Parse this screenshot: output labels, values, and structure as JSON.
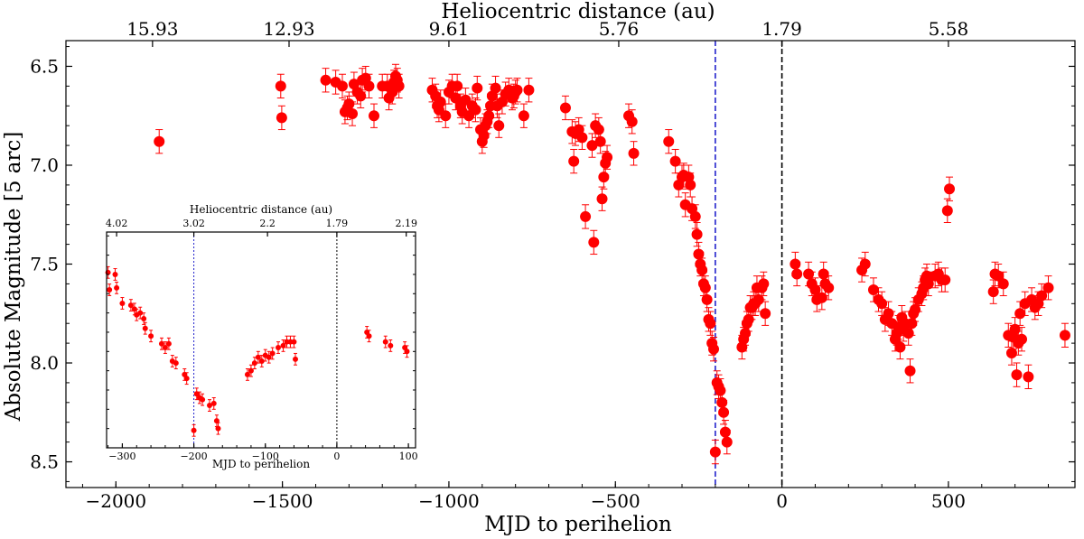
{
  "chart_data": [
    {
      "id": "main",
      "type": "scatter",
      "xlabel": "MJD to perihelion",
      "ylabel": "Absolute Magnitude [5 arc]",
      "top_axis_label": "Heliocentric distance (au)",
      "xlim": [
        -2150,
        880
      ],
      "ylim": [
        8.63,
        6.37
      ],
      "y_inverted": true,
      "x_ticks": [
        -2000,
        -1500,
        -1000,
        -500,
        0,
        500
      ],
      "x_tick_labels": [
        "−2000",
        "−1500",
        "−1000",
        "−500",
        "0",
        "500"
      ],
      "y_ticks": [
        6.5,
        7.0,
        7.5,
        8.0,
        8.5
      ],
      "y_tick_labels": [
        "6.5",
        "7.0",
        "7.5",
        "8.0",
        "8.5"
      ],
      "top_ticks": [
        {
          "x": -1890,
          "label": "15.93"
        },
        {
          "x": -1480,
          "label": "12.93"
        },
        {
          "x": -1000,
          "label": "9.61"
        },
        {
          "x": -490,
          "label": "5.76"
        },
        {
          "x": 0,
          "label": "1.79"
        },
        {
          "x": 500,
          "label": "5.58"
        }
      ],
      "vlines": [
        {
          "x": -200,
          "color": "#2222cc",
          "style": "dashed"
        },
        {
          "x": 0,
          "color": "#000000",
          "style": "dashed"
        }
      ],
      "marker_color": "#ff0000",
      "points": [
        [
          -1870,
          6.88
        ],
        [
          -1505,
          6.6
        ],
        [
          -1502,
          6.76
        ],
        [
          -1370,
          6.57
        ],
        [
          -1340,
          6.58
        ],
        [
          -1320,
          6.6
        ],
        [
          -1312,
          6.73
        ],
        [
          -1305,
          6.71
        ],
        [
          -1300,
          6.69
        ],
        [
          -1290,
          6.74
        ],
        [
          -1285,
          6.59
        ],
        [
          -1275,
          6.63
        ],
        [
          -1265,
          6.65
        ],
        [
          -1260,
          6.57
        ],
        [
          -1250,
          6.56
        ],
        [
          -1240,
          6.6
        ],
        [
          -1225,
          6.75
        ],
        [
          -1200,
          6.6
        ],
        [
          -1185,
          6.6
        ],
        [
          -1180,
          6.66
        ],
        [
          -1170,
          6.63
        ],
        [
          -1165,
          6.58
        ],
        [
          -1160,
          6.55
        ],
        [
          -1155,
          6.57
        ],
        [
          -1150,
          6.6
        ],
        [
          -1050,
          6.62
        ],
        [
          -1040,
          6.65
        ],
        [
          -1035,
          6.7
        ],
        [
          -1030,
          6.72
        ],
        [
          -1025,
          6.68
        ],
        [
          -1010,
          6.75
        ],
        [
          -1000,
          6.63
        ],
        [
          -990,
          6.6
        ],
        [
          -980,
          6.66
        ],
        [
          -975,
          6.6
        ],
        [
          -965,
          6.7
        ],
        [
          -960,
          6.73
        ],
        [
          -950,
          6.67
        ],
        [
          -940,
          6.75
        ],
        [
          -930,
          6.7
        ],
        [
          -920,
          6.72
        ],
        [
          -915,
          6.61
        ],
        [
          -905,
          6.82
        ],
        [
          -900,
          6.88
        ],
        [
          -895,
          6.85
        ],
        [
          -890,
          6.8
        ],
        [
          -885,
          6.78
        ],
        [
          -880,
          6.75
        ],
        [
          -875,
          6.7
        ],
        [
          -870,
          6.65
        ],
        [
          -860,
          6.61
        ],
        [
          -855,
          6.7
        ],
        [
          -850,
          6.8
        ],
        [
          -840,
          6.68
        ],
        [
          -830,
          6.64
        ],
        [
          -820,
          6.62
        ],
        [
          -810,
          6.66
        ],
        [
          -805,
          6.65
        ],
        [
          -800,
          6.63
        ],
        [
          -795,
          6.62
        ],
        [
          -775,
          6.75
        ],
        [
          -760,
          6.62
        ],
        [
          -650,
          6.71
        ],
        [
          -630,
          6.83
        ],
        [
          -625,
          6.98
        ],
        [
          -620,
          6.84
        ],
        [
          -610,
          6.82
        ],
        [
          -600,
          6.86
        ],
        [
          -590,
          7.26
        ],
        [
          -570,
          6.9
        ],
        [
          -565,
          7.39
        ],
        [
          -560,
          6.8
        ],
        [
          -550,
          6.82
        ],
        [
          -545,
          6.88
        ],
        [
          -540,
          7.17
        ],
        [
          -535,
          7.06
        ],
        [
          -530,
          6.99
        ],
        [
          -525,
          6.96
        ],
        [
          -460,
          6.75
        ],
        [
          -450,
          6.78
        ],
        [
          -445,
          6.94
        ],
        [
          -340,
          6.88
        ],
        [
          -320,
          6.98
        ],
        [
          -310,
          7.1
        ],
        [
          -300,
          7.06
        ],
        [
          -295,
          7.05
        ],
        [
          -290,
          7.2
        ],
        [
          -280,
          7.06
        ],
        [
          -275,
          7.1
        ],
        [
          -270,
          7.22
        ],
        [
          -260,
          7.26
        ],
        [
          -255,
          7.35
        ],
        [
          -250,
          7.45
        ],
        [
          -245,
          7.5
        ],
        [
          -240,
          7.53
        ],
        [
          -235,
          7.6
        ],
        [
          -230,
          7.62
        ],
        [
          -225,
          7.68
        ],
        [
          -220,
          7.78
        ],
        [
          -215,
          7.8
        ],
        [
          -210,
          7.9
        ],
        [
          -205,
          7.93
        ],
        [
          -200,
          8.45
        ],
        [
          -195,
          8.1
        ],
        [
          -190,
          8.12
        ],
        [
          -185,
          8.14
        ],
        [
          -180,
          8.2
        ],
        [
          -175,
          8.25
        ],
        [
          -170,
          8.35
        ],
        [
          -165,
          8.4
        ],
        [
          -120,
          7.92
        ],
        [
          -115,
          7.88
        ],
        [
          -110,
          7.85
        ],
        [
          -105,
          7.8
        ],
        [
          -100,
          7.78
        ],
        [
          -95,
          7.72
        ],
        [
          -90,
          7.72
        ],
        [
          -85,
          7.7
        ],
        [
          -80,
          7.7
        ],
        [
          -75,
          7.62
        ],
        [
          -70,
          7.68
        ],
        [
          -60,
          7.62
        ],
        [
          -55,
          7.6
        ],
        [
          -50,
          7.75
        ],
        [
          40,
          7.5
        ],
        [
          45,
          7.55
        ],
        [
          80,
          7.55
        ],
        [
          90,
          7.6
        ],
        [
          100,
          7.63
        ],
        [
          105,
          7.68
        ],
        [
          120,
          7.67
        ],
        [
          125,
          7.55
        ],
        [
          130,
          7.6
        ],
        [
          140,
          7.62
        ],
        [
          240,
          7.53
        ],
        [
          250,
          7.5
        ],
        [
          275,
          7.63
        ],
        [
          290,
          7.68
        ],
        [
          300,
          7.7
        ],
        [
          310,
          7.78
        ],
        [
          320,
          7.75
        ],
        [
          330,
          7.8
        ],
        [
          340,
          7.88
        ],
        [
          345,
          7.85
        ],
        [
          350,
          7.82
        ],
        [
          355,
          7.92
        ],
        [
          360,
          7.77
        ],
        [
          365,
          7.83
        ],
        [
          370,
          7.8
        ],
        [
          380,
          7.85
        ],
        [
          385,
          8.04
        ],
        [
          390,
          7.8
        ],
        [
          395,
          7.75
        ],
        [
          400,
          7.73
        ],
        [
          410,
          7.68
        ],
        [
          420,
          7.65
        ],
        [
          425,
          7.62
        ],
        [
          430,
          7.58
        ],
        [
          435,
          7.56
        ],
        [
          440,
          7.6
        ],
        [
          460,
          7.56
        ],
        [
          470,
          7.55
        ],
        [
          480,
          7.58
        ],
        [
          490,
          7.58
        ],
        [
          497,
          7.23
        ],
        [
          503,
          7.12
        ],
        [
          635,
          7.64
        ],
        [
          640,
          7.55
        ],
        [
          650,
          7.56
        ],
        [
          665,
          7.6
        ],
        [
          680,
          7.86
        ],
        [
          690,
          7.95
        ],
        [
          695,
          7.87
        ],
        [
          700,
          7.83
        ],
        [
          705,
          8.06
        ],
        [
          710,
          7.9
        ],
        [
          715,
          7.75
        ],
        [
          720,
          7.88
        ],
        [
          730,
          7.7
        ],
        [
          740,
          8.07
        ],
        [
          750,
          7.68
        ],
        [
          760,
          7.72
        ],
        [
          770,
          7.7
        ],
        [
          780,
          7.66
        ],
        [
          800,
          7.62
        ],
        [
          850,
          7.86
        ]
      ]
    },
    {
      "id": "inset",
      "type": "scatter",
      "xlabel": "MJD to perihelion",
      "top_axis_label": "Heliocentric distance (au)",
      "xlim": [
        -322,
        110
      ],
      "ylim": [
        8.4,
        7.28
      ],
      "y_inverted": true,
      "x_ticks": [
        -300,
        -200,
        -100,
        0,
        100
      ],
      "x_tick_labels": [
        "−300",
        "−200",
        "−100",
        "0",
        "100"
      ],
      "top_ticks": [
        {
          "x": -308,
          "label": "4.02"
        },
        {
          "x": -200,
          "label": "3.02"
        },
        {
          "x": -97,
          "label": "2.2"
        },
        {
          "x": 0,
          "label": "1.79"
        },
        {
          "x": 97,
          "label": "2.19"
        }
      ],
      "vlines": [
        {
          "x": -200,
          "color": "#2222cc",
          "style": "dotted"
        },
        {
          "x": 0,
          "color": "#000000",
          "style": "dotted"
        }
      ],
      "marker_color": "#ff0000",
      "points": [
        [
          -320,
          7.49
        ],
        [
          -318,
          7.58
        ],
        [
          -310,
          7.5
        ],
        [
          -308,
          7.57
        ],
        [
          -300,
          7.65
        ],
        [
          -288,
          7.66
        ],
        [
          -283,
          7.68
        ],
        [
          -280,
          7.71
        ],
        [
          -275,
          7.7
        ],
        [
          -270,
          7.73
        ],
        [
          -268,
          7.78
        ],
        [
          -260,
          7.82
        ],
        [
          -245,
          7.86
        ],
        [
          -240,
          7.88
        ],
        [
          -235,
          7.86
        ],
        [
          -230,
          7.95
        ],
        [
          -225,
          7.96
        ],
        [
          -213,
          8.02
        ],
        [
          -210,
          8.04
        ],
        [
          -200,
          8.31
        ],
        [
          -196,
          8.12
        ],
        [
          -192,
          8.14
        ],
        [
          -188,
          8.15
        ],
        [
          -178,
          8.18
        ],
        [
          -172,
          8.17
        ],
        [
          -168,
          8.26
        ],
        [
          -166,
          8.3
        ],
        [
          -125,
          8.02
        ],
        [
          -120,
          8.0
        ],
        [
          -115,
          7.96
        ],
        [
          -110,
          7.93
        ],
        [
          -105,
          7.95
        ],
        [
          -100,
          7.92
        ],
        [
          -95,
          7.93
        ],
        [
          -90,
          7.91
        ],
        [
          -82,
          7.88
        ],
        [
          -75,
          7.87
        ],
        [
          -70,
          7.85
        ],
        [
          -65,
          7.85
        ],
        [
          -60,
          7.85
        ],
        [
          -58,
          7.94
        ],
        [
          42,
          7.8
        ],
        [
          45,
          7.82
        ],
        [
          68,
          7.85
        ],
        [
          75,
          7.87
        ],
        [
          95,
          7.88
        ],
        [
          98,
          7.9
        ]
      ]
    }
  ]
}
